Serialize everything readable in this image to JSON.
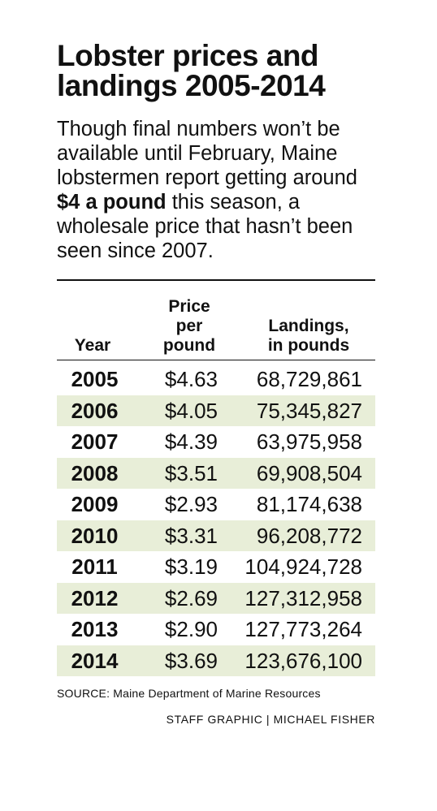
{
  "title": "Lobster prices and landings 2005-2014",
  "intro": {
    "before": "Though final numbers won’t be available until February, Maine lobstermen report getting around ",
    "bold": "$4 a pound",
    "after": " this season, a wholesale price that hasn’t been seen since 2007."
  },
  "headers": {
    "year": "Year",
    "price": [
      "Price",
      "per",
      "pound"
    ],
    "landings": [
      "Landings,",
      "in pounds"
    ]
  },
  "chart_data": {
    "type": "table",
    "columns": [
      "Year",
      "Price per pound",
      "Landings, in pounds"
    ],
    "rows": [
      {
        "year": "2005",
        "price": "$4.63",
        "landings": "68,729,861"
      },
      {
        "year": "2006",
        "price": "$4.05",
        "landings": "75,345,827"
      },
      {
        "year": "2007",
        "price": "$4.39",
        "landings": "63,975,958"
      },
      {
        "year": "2008",
        "price": "$3.51",
        "landings": "69,908,504"
      },
      {
        "year": "2009",
        "price": "$2.93",
        "landings": "81,174,638"
      },
      {
        "year": "2010",
        "price": "$3.31",
        "landings": "96,208,772"
      },
      {
        "year": "2011",
        "price": "$3.19",
        "landings": "104,924,728"
      },
      {
        "year": "2012",
        "price": "$2.69",
        "landings": "127,312,958"
      },
      {
        "year": "2013",
        "price": "$2.90",
        "landings": "127,773,264"
      },
      {
        "year": "2014",
        "price": "$3.69",
        "landings": "123,676,100"
      }
    ],
    "row_shading": "#e8eed8"
  },
  "source": "SOURCE: Maine Department of Marine Resources",
  "credit": "STAFF GRAPHIC | MICHAEL FISHER"
}
